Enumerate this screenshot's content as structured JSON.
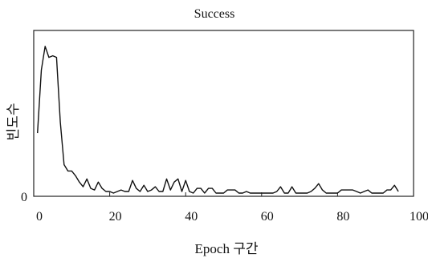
{
  "chart_data": {
    "type": "line",
    "title": "Success",
    "xlabel": "Epoch 구간",
    "ylabel": "빈도수",
    "xlim": [
      0,
      100
    ],
    "x_ticks": [
      "0",
      "20",
      "40",
      "60",
      "80",
      "100"
    ],
    "y_ticks": [
      "0"
    ],
    "ylim": [
      0,
      100
    ],
    "grid": false,
    "series": [
      {
        "values": [
          [
            1,
            38
          ],
          [
            2,
            78
          ],
          [
            3,
            93
          ],
          [
            4,
            86
          ],
          [
            5,
            87
          ],
          [
            6,
            86
          ],
          [
            7,
            45
          ],
          [
            8,
            18
          ],
          [
            9,
            14
          ],
          [
            10,
            14
          ],
          [
            11,
            11
          ],
          [
            12,
            7
          ],
          [
            13,
            4
          ],
          [
            14,
            9
          ],
          [
            15,
            3
          ],
          [
            16,
            2
          ],
          [
            17,
            7
          ],
          [
            18,
            3
          ],
          [
            19,
            1
          ],
          [
            20,
            1
          ],
          [
            21,
            0
          ],
          [
            22,
            1
          ],
          [
            23,
            2
          ],
          [
            24,
            1
          ],
          [
            25,
            1
          ],
          [
            26,
            8
          ],
          [
            27,
            3
          ],
          [
            28,
            1
          ],
          [
            29,
            5
          ],
          [
            30,
            1
          ],
          [
            31,
            2
          ],
          [
            32,
            4
          ],
          [
            33,
            1
          ],
          [
            34,
            1
          ],
          [
            35,
            9
          ],
          [
            36,
            2
          ],
          [
            37,
            7
          ],
          [
            38,
            9
          ],
          [
            39,
            1
          ],
          [
            40,
            8
          ],
          [
            41,
            1
          ],
          [
            42,
            0
          ],
          [
            43,
            3
          ],
          [
            44,
            3
          ],
          [
            45,
            0
          ],
          [
            46,
            3
          ],
          [
            47,
            3
          ],
          [
            48,
            0
          ],
          [
            49,
            0
          ],
          [
            50,
            0
          ],
          [
            51,
            2
          ],
          [
            52,
            2
          ],
          [
            53,
            2
          ],
          [
            54,
            0
          ],
          [
            55,
            0
          ],
          [
            56,
            1
          ],
          [
            57,
            0
          ],
          [
            58,
            0
          ],
          [
            59,
            0
          ],
          [
            60,
            0
          ],
          [
            61,
            0
          ],
          [
            62,
            0
          ],
          [
            63,
            0
          ],
          [
            64,
            1
          ],
          [
            65,
            4
          ],
          [
            66,
            0
          ],
          [
            67,
            0
          ],
          [
            68,
            4
          ],
          [
            69,
            0
          ],
          [
            70,
            0
          ],
          [
            71,
            0
          ],
          [
            72,
            0
          ],
          [
            73,
            1
          ],
          [
            74,
            3
          ],
          [
            75,
            6
          ],
          [
            76,
            2
          ],
          [
            77,
            0
          ],
          [
            78,
            0
          ],
          [
            79,
            0
          ],
          [
            80,
            0
          ],
          [
            81,
            2
          ],
          [
            82,
            2
          ],
          [
            83,
            2
          ],
          [
            84,
            2
          ],
          [
            85,
            1
          ],
          [
            86,
            0
          ],
          [
            87,
            1
          ],
          [
            88,
            2
          ],
          [
            89,
            0
          ],
          [
            90,
            0
          ],
          [
            91,
            0
          ],
          [
            92,
            0
          ],
          [
            93,
            2
          ],
          [
            94,
            2
          ],
          [
            95,
            5
          ],
          [
            96,
            1
          ]
        ]
      }
    ]
  }
}
